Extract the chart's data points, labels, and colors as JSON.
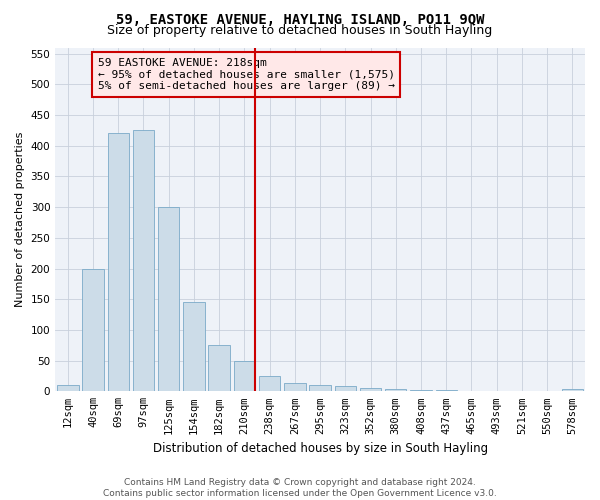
{
  "title": "59, EASTOKE AVENUE, HAYLING ISLAND, PO11 9QW",
  "subtitle": "Size of property relative to detached houses in South Hayling",
  "xlabel": "Distribution of detached houses by size in South Hayling",
  "ylabel": "Number of detached properties",
  "footer_line1": "Contains HM Land Registry data © Crown copyright and database right 2024.",
  "footer_line2": "Contains public sector information licensed under the Open Government Licence v3.0.",
  "bar_labels": [
    "12sqm",
    "40sqm",
    "69sqm",
    "97sqm",
    "125sqm",
    "154sqm",
    "182sqm",
    "210sqm",
    "238sqm",
    "267sqm",
    "295sqm",
    "323sqm",
    "352sqm",
    "380sqm",
    "408sqm",
    "437sqm",
    "465sqm",
    "493sqm",
    "521sqm",
    "550sqm",
    "578sqm"
  ],
  "bar_values": [
    10,
    200,
    420,
    425,
    300,
    145,
    75,
    50,
    25,
    13,
    10,
    8,
    5,
    3,
    2,
    2,
    1,
    1,
    1,
    1,
    3
  ],
  "bar_color": "#ccdce8",
  "bar_edge_color": "#7aaac8",
  "vline_x_index": 7,
  "vline_color": "#cc0000",
  "annotation_text_line1": "59 EASTOKE AVENUE: 218sqm",
  "annotation_text_line2": "← 95% of detached houses are smaller (1,575)",
  "annotation_text_line3": "5% of semi-detached houses are larger (89) →",
  "box_facecolor": "#ffe8e8",
  "box_edgecolor": "#cc0000",
  "ylim": [
    0,
    560
  ],
  "yticks": [
    0,
    50,
    100,
    150,
    200,
    250,
    300,
    350,
    400,
    450,
    500,
    550
  ],
  "background_color": "#eef2f8",
  "grid_color": "#c8d0dc",
  "title_fontsize": 10,
  "subtitle_fontsize": 9,
  "xlabel_fontsize": 8.5,
  "ylabel_fontsize": 8,
  "tick_fontsize": 7.5,
  "annotation_fontsize": 8,
  "footer_fontsize": 6.5
}
